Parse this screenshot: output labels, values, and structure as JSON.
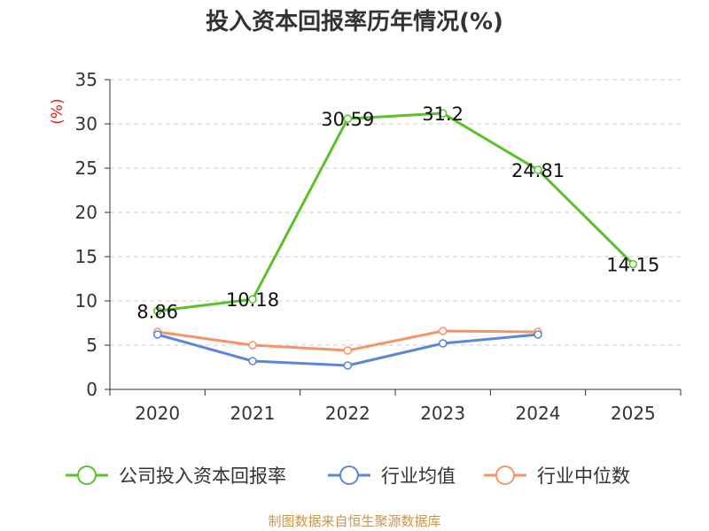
{
  "chart_data": {
    "type": "line",
    "title": "投入资本回报率历年情况(%)",
    "ylabel": "(%)",
    "xlabel": "",
    "categories": [
      "2020",
      "2021",
      "2022",
      "2023",
      "2024",
      "2025"
    ],
    "ylim": [
      0,
      35
    ],
    "yticks": [
      0,
      5,
      10,
      15,
      20,
      25,
      30,
      35
    ],
    "grid": true,
    "legend_position": "bottom",
    "series": [
      {
        "name": "公司投入资本回报率",
        "color": "#5ac12a",
        "values": [
          8.86,
          10.18,
          30.59,
          31.2,
          24.81,
          14.15
        ],
        "labels": [
          "8.86",
          "10.18",
          "30.59",
          "31.2",
          "24.81",
          "14.15"
        ]
      },
      {
        "name": "行业均值",
        "color": "#5b86d9",
        "values": [
          6.2,
          3.2,
          2.7,
          5.2,
          6.2,
          null
        ]
      },
      {
        "name": "行业中位数",
        "color": "#f59466",
        "values": [
          6.5,
          5.0,
          4.4,
          6.6,
          6.5,
          null
        ]
      }
    ]
  },
  "source": "制图数据来自恒生聚源数据库"
}
